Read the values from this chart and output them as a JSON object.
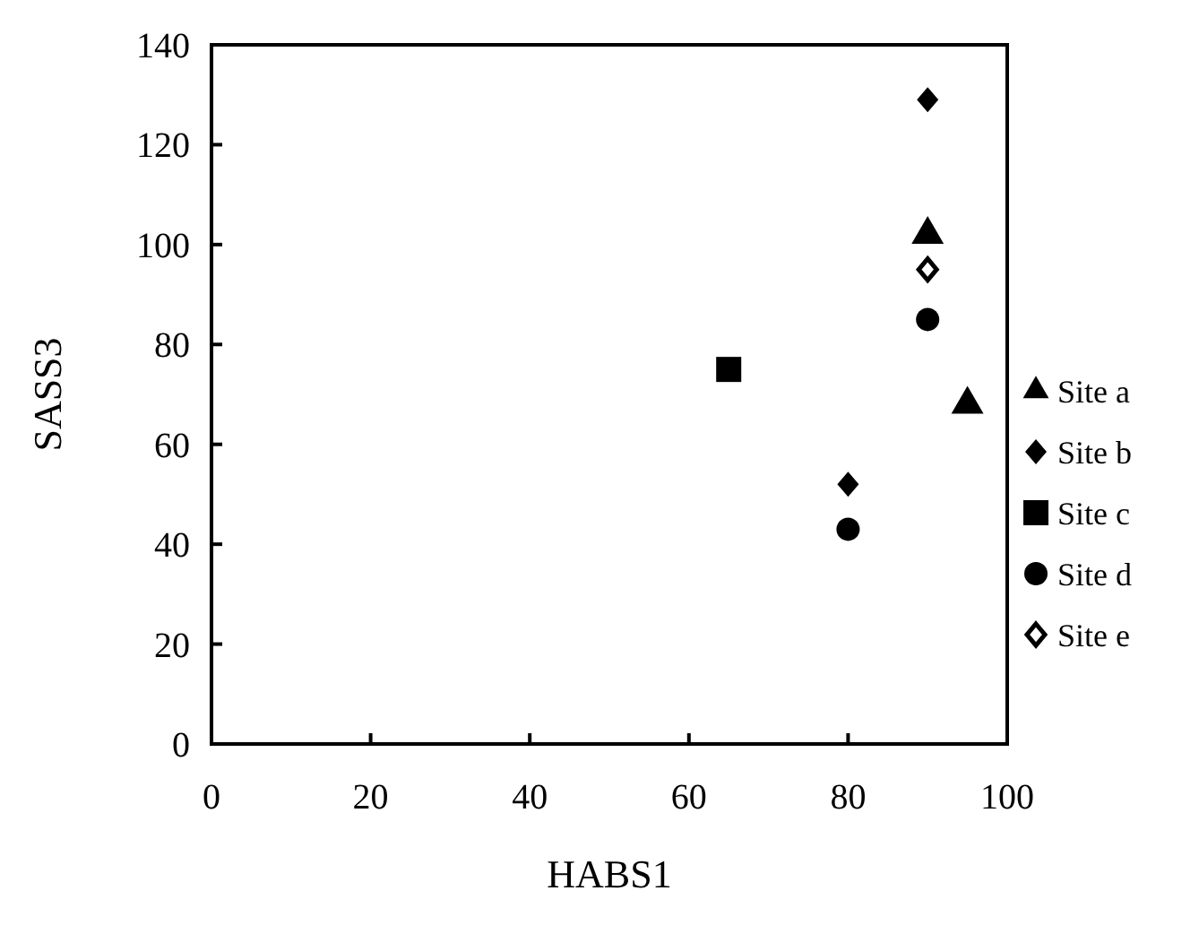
{
  "chart_data": {
    "type": "scatter",
    "xlabel": "HABS1",
    "ylabel": "SASS3",
    "xlim": [
      0,
      100
    ],
    "ylim": [
      0,
      140
    ],
    "xticks": [
      0,
      20,
      40,
      60,
      80,
      100
    ],
    "yticks": [
      0,
      20,
      40,
      60,
      80,
      100,
      120,
      140
    ],
    "grid": false,
    "legend": "right",
    "series": [
      {
        "name": "Site a",
        "color": "#000000",
        "marker": "triangle",
        "x": [
          90,
          95
        ],
        "values": [
          102,
          68
        ]
      },
      {
        "name": "Site b",
        "color": "#000000",
        "marker": "diamond",
        "x": [
          90,
          80
        ],
        "values": [
          129,
          52
        ]
      },
      {
        "name": "Site c",
        "color": "#000000",
        "marker": "square",
        "x": [
          65
        ],
        "values": [
          75
        ]
      },
      {
        "name": "Site d",
        "color": "#000000",
        "marker": "circle",
        "x": [
          90,
          80
        ],
        "values": [
          85,
          43
        ]
      },
      {
        "name": "Site e",
        "color": "#000000",
        "marker": "diamond-open",
        "x": [
          90
        ],
        "values": [
          95
        ]
      }
    ]
  }
}
